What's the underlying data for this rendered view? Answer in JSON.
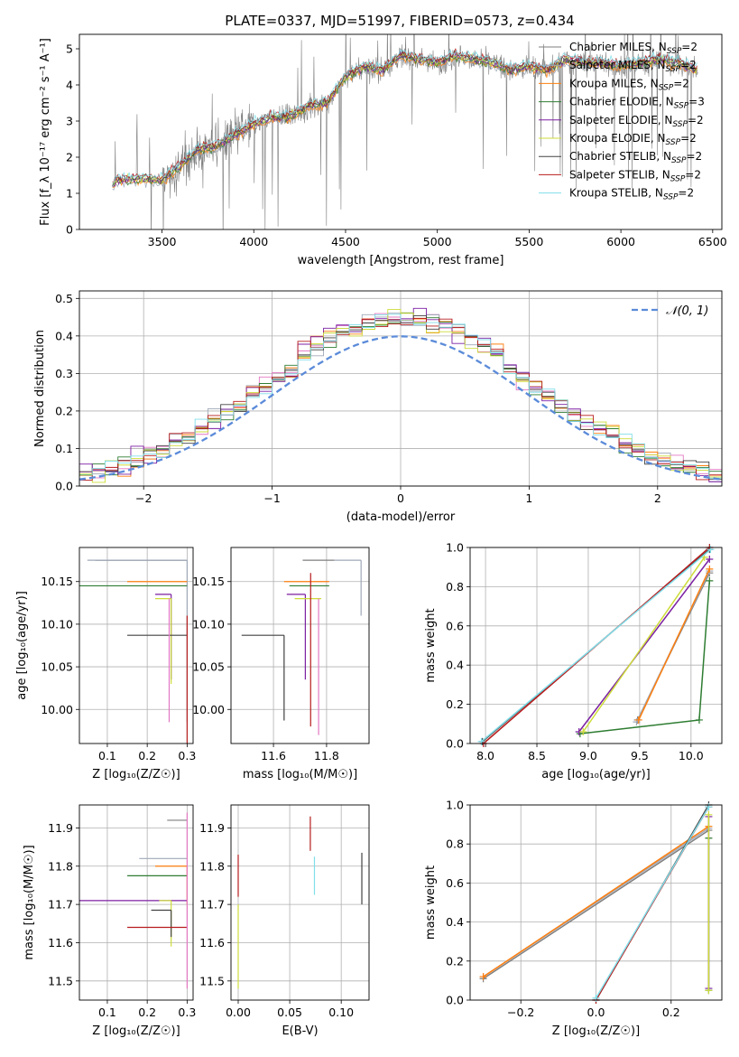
{
  "title": "PLATE=0337, MJD=51997, FIBERID=0573, z=0.434",
  "model_colors": [
    "#7f7f7f",
    "#9fa8b8",
    "#ff7f0e",
    "#2e7d32",
    "#7b1fa2",
    "#cddc39",
    "#424242",
    "#b71c1c",
    "#80deea"
  ],
  "chart_data": [
    {
      "id": "spectrum",
      "type": "line",
      "xlabel": "wavelength [Angstrom, rest frame]",
      "ylabel": "Flux [f_λ 10⁻¹⁷ erg cm⁻² s⁻¹ A⁻¹]",
      "xlim": [
        3050,
        6550
      ],
      "ylim": [
        0,
        5.4
      ],
      "xticks": [
        3500,
        4000,
        4500,
        5000,
        5500,
        6000,
        6500
      ],
      "yticks": [
        0,
        1,
        2,
        3,
        4,
        5
      ],
      "grid": false,
      "legend_position": "right",
      "legend": [
        {
          "base": "Chabrier MILES, N",
          "sub": "SSP",
          "tail": "=2"
        },
        {
          "base": "Salpeter MILES, N",
          "sub": "SSP",
          "tail": "=2"
        },
        {
          "base": "Kroupa MILES, N",
          "sub": "SSP",
          "tail": "=2"
        },
        {
          "base": "Chabrier ELODIE, N",
          "sub": "SSP",
          "tail": "=3"
        },
        {
          "base": "Salpeter ELODIE, N",
          "sub": "SSP",
          "tail": "=2"
        },
        {
          "base": "Kroupa ELODIE, N",
          "sub": "SSP",
          "tail": "=2"
        },
        {
          "base": "Chabrier STELIB, N",
          "sub": "SSP",
          "tail": "=2"
        },
        {
          "base": "Salpeter STELIB, N",
          "sub": "SSP",
          "tail": "=2"
        },
        {
          "base": "Kroupa STELIB, N",
          "sub": "SSP",
          "tail": "=2"
        }
      ],
      "continuum_nodes": {
        "x": [
          3230,
          3250,
          3400,
          3500,
          3600,
          3700,
          3800,
          3900,
          4000,
          4100,
          4200,
          4300,
          4400,
          4500,
          4600,
          4700,
          4800,
          4900,
          5000,
          5100,
          5200,
          5300,
          5400,
          5500,
          5600,
          5700,
          5800,
          5900,
          6000,
          6100,
          6200,
          6300,
          6420
        ],
        "y": [
          1.2,
          1.35,
          1.4,
          1.35,
          1.75,
          2.2,
          2.3,
          2.6,
          2.9,
          3.1,
          3.1,
          3.4,
          3.5,
          4.2,
          4.5,
          4.4,
          4.8,
          4.7,
          4.6,
          4.8,
          4.7,
          4.6,
          4.4,
          4.5,
          4.4,
          4.7,
          4.6,
          4.6,
          4.5,
          4.6,
          4.7,
          4.6,
          4.4
        ]
      }
    },
    {
      "id": "residuals",
      "type": "step",
      "xlabel": "(data-model)/error",
      "ylabel": "Normed distribution",
      "xlim": [
        -2.5,
        2.5
      ],
      "ylim": [
        0,
        0.52
      ],
      "xticks": [
        -2,
        -1,
        0,
        1,
        2
      ],
      "yticks": [
        0.0,
        0.1,
        0.2,
        0.3,
        0.4,
        0.5
      ],
      "grid": true,
      "legend_position": "top-right",
      "normal_label": "𝒩(0, 1)",
      "normal_color": "#5b8bd9",
      "bin_width": 0.1
    },
    {
      "id": "age_vs_Z",
      "type": "errorbar",
      "xlabel": "Z [log₁₀(Z/Z☉)]",
      "ylabel": "age  [log₁₀(age/yr)]",
      "xlim": [
        0.03,
        0.315
      ],
      "ylim": [
        9.96,
        10.19
      ],
      "xticks": [
        0.1,
        0.2,
        0.3
      ],
      "yticks": [
        10.0,
        10.05,
        10.1,
        10.15
      ],
      "grid": true,
      "points": [
        {
          "x": 0.3,
          "y": 10.175,
          "xlo": 0.23,
          "xhi": 0.0,
          "ylo": 0.0,
          "yhi": 0.0
        },
        {
          "x": 0.3,
          "y": 10.175,
          "xlo": 0.25,
          "xhi": 0.0,
          "ylo": 0.19,
          "yhi": 0.0
        },
        {
          "x": 0.3,
          "y": 10.15,
          "xlo": 0.15,
          "xhi": 0.0,
          "ylo": 0.0,
          "yhi": 0.0
        },
        {
          "x": 0.3,
          "y": 10.145,
          "xlo": 0.27,
          "xhi": 0.0,
          "ylo": 0.0,
          "yhi": 0.0
        },
        {
          "x": 0.26,
          "y": 10.135,
          "xlo": 0.04,
          "xhi": 0.0,
          "ylo": 0.1,
          "yhi": 0.0
        },
        {
          "x": 0.26,
          "y": 10.13,
          "xlo": 0.04,
          "xhi": 0.0,
          "ylo": 0.1,
          "yhi": 0.0
        },
        {
          "x": 0.3,
          "y": 10.087,
          "xlo": 0.15,
          "xhi": 0.0,
          "ylo": 0.0,
          "yhi": 0.0
        },
        {
          "x": 0.3,
          "y": 10.11,
          "xlo": 0.0,
          "xhi": 0.0,
          "ylo": 0.2,
          "yhi": 0.0
        },
        {
          "x": 0.255,
          "y": 10.13,
          "xlo": 0.0,
          "xhi": 0.0,
          "ylo": 0.145,
          "yhi": 0.0
        }
      ]
    },
    {
      "id": "age_vs_mass",
      "type": "errorbar",
      "xlabel": "mass [log₁₀(M/M☉)]",
      "ylabel": "",
      "xlim": [
        11.44,
        11.96
      ],
      "ylim": [
        9.96,
        10.19
      ],
      "xticks": [
        11.6,
        11.8
      ],
      "yticks": [
        10.0,
        10.05,
        10.1,
        10.15
      ],
      "grid": true,
      "points": [
        {
          "x": 11.83,
          "y": 10.175,
          "xlo": 0.12,
          "xhi": 0.0,
          "ylo": 0.0,
          "yhi": 0.0
        },
        {
          "x": 11.93,
          "y": 10.175,
          "xlo": 0.1,
          "xhi": 0.0,
          "ylo": 0.065,
          "yhi": 0.0
        },
        {
          "x": 11.81,
          "y": 10.15,
          "xlo": 0.17,
          "xhi": 0.0,
          "ylo": 0.0,
          "yhi": 0.0
        },
        {
          "x": 11.81,
          "y": 10.145,
          "xlo": 0.15,
          "xhi": 0.0,
          "ylo": 0.0,
          "yhi": 0.0
        },
        {
          "x": 11.72,
          "y": 10.135,
          "xlo": 0.07,
          "xhi": 0.0,
          "ylo": 0.1,
          "yhi": 0.0
        },
        {
          "x": 11.78,
          "y": 10.13,
          "xlo": 0.1,
          "xhi": 0.0,
          "ylo": 0.0,
          "yhi": 0.0
        },
        {
          "x": 11.64,
          "y": 10.087,
          "xlo": 0.16,
          "xhi": 0.0,
          "ylo": 0.1,
          "yhi": 0.0
        },
        {
          "x": 11.74,
          "y": 10.16,
          "xlo": 0.0,
          "xhi": 0.0,
          "ylo": 0.18,
          "yhi": 0.0
        },
        {
          "x": 11.77,
          "y": 10.13,
          "xlo": 0.0,
          "xhi": 0.0,
          "ylo": 0.16,
          "yhi": 0.0
        }
      ]
    },
    {
      "id": "mass_weight_vs_age",
      "type": "line",
      "xlabel": "age  [log₁₀(age/yr)]",
      "ylabel": "mass weight",
      "xlim": [
        7.85,
        10.3
      ],
      "ylim": [
        0,
        1.0
      ],
      "xticks": [
        8.0,
        8.5,
        9.0,
        9.5,
        10.0
      ],
      "yticks": [
        0.0,
        0.2,
        0.4,
        0.6,
        0.8,
        1.0
      ],
      "grid": true,
      "series": [
        {
          "x": [
            9.48,
            10.18
          ],
          "y": [
            0.12,
            0.87
          ]
        },
        {
          "x": [
            9.47,
            10.18
          ],
          "y": [
            0.11,
            0.88
          ]
        },
        {
          "x": [
            9.49,
            10.18
          ],
          "y": [
            0.12,
            0.89
          ]
        },
        {
          "x": [
            8.92,
            10.08,
            10.18
          ],
          "y": [
            0.05,
            0.12,
            0.83
          ]
        },
        {
          "x": [
            8.91,
            10.18
          ],
          "y": [
            0.06,
            0.94
          ]
        },
        {
          "x": [
            8.95,
            10.13
          ],
          "y": [
            0.06,
            0.95
          ]
        },
        {
          "x": [
            7.97,
            10.18
          ],
          "y": [
            0.01,
            0.99
          ]
        },
        {
          "x": [
            7.98,
            10.18
          ],
          "y": [
            0.0,
            1.0
          ]
        },
        {
          "x": [
            7.96,
            10.19
          ],
          "y": [
            0.01,
            0.99
          ]
        }
      ]
    },
    {
      "id": "mass_vs_Z",
      "type": "errorbar",
      "xlabel": "Z [log₁₀(Z/Z☉)]",
      "ylabel": "mass [log₁₀(M/M☉)]",
      "xlim": [
        0.03,
        0.315
      ],
      "ylim": [
        11.45,
        11.96
      ],
      "xticks": [
        0.1,
        0.2,
        0.3
      ],
      "yticks": [
        11.5,
        11.6,
        11.7,
        11.8,
        11.9
      ],
      "grid": true,
      "points": [
        {
          "x": 0.3,
          "y": 11.92,
          "xlo": 0.05,
          "xhi": 0.0,
          "ylo": 0.0,
          "yhi": 0.0
        },
        {
          "x": 0.3,
          "y": 11.82,
          "xlo": 0.12,
          "xhi": 0.0,
          "ylo": 0.0,
          "yhi": 0.0
        },
        {
          "x": 0.3,
          "y": 11.8,
          "xlo": 0.08,
          "xhi": 0.0,
          "ylo": 0.1,
          "yhi": 0.0
        },
        {
          "x": 0.3,
          "y": 11.775,
          "xlo": 0.15,
          "xhi": 0.0,
          "ylo": 0.0,
          "yhi": 0.0
        },
        {
          "x": 0.3,
          "y": 11.71,
          "xlo": 0.27,
          "xhi": 0.0,
          "ylo": 0.0,
          "yhi": 0.0
        },
        {
          "x": 0.26,
          "y": 11.71,
          "xlo": 0.03,
          "xhi": 0.0,
          "ylo": 0.12,
          "yhi": 0.0
        },
        {
          "x": 0.26,
          "y": 11.685,
          "xlo": 0.05,
          "xhi": 0.0,
          "ylo": 0.07,
          "yhi": 0.0
        },
        {
          "x": 0.3,
          "y": 11.64,
          "xlo": 0.15,
          "xhi": 0.0,
          "ylo": 0.0,
          "yhi": 0.0
        },
        {
          "x": 0.3,
          "y": 11.94,
          "xlo": 0.0,
          "xhi": 0.0,
          "ylo": 0.46,
          "yhi": 0.0
        }
      ]
    },
    {
      "id": "mass_vs_EBV",
      "type": "errorbar",
      "xlabel": "E(B-V)",
      "ylabel": "",
      "xlim": [
        -0.007,
        0.127
      ],
      "ylim": [
        11.45,
        11.96
      ],
      "xticks": [
        0.0,
        0.05,
        0.1
      ],
      "yticks": [
        11.5,
        11.6,
        11.7,
        11.8,
        11.9
      ],
      "grid": true,
      "points": [
        {
          "x": 0.0,
          "y": 11.77,
          "xlo": 0.0,
          "xhi": 0.0,
          "ylo": 0.05,
          "yhi": 0.06
        },
        {
          "x": 0.0,
          "y": 11.6,
          "xlo": 0.0,
          "xhi": 0.0,
          "ylo": 0.12,
          "yhi": 0.1
        },
        {
          "x": 0.07,
          "y": 11.885,
          "xlo": 0.0,
          "xhi": 0.0,
          "ylo": 0.045,
          "yhi": 0.045
        },
        {
          "x": 0.074,
          "y": 11.775,
          "xlo": 0.0,
          "xhi": 0.0,
          "ylo": 0.05,
          "yhi": 0.05
        },
        {
          "x": 0.12,
          "y": 11.77,
          "xlo": 0.0,
          "xhi": 0.0,
          "ylo": 0.07,
          "yhi": 0.065
        }
      ],
      "point_colors": [
        7,
        5,
        7,
        8,
        6
      ]
    },
    {
      "id": "mass_weight_vs_Z",
      "type": "line",
      "xlabel": "Z [log₁₀(Z/Z☉)]",
      "ylabel": "mass weight",
      "xlim": [
        -0.335,
        0.335
      ],
      "ylim": [
        0,
        1.0
      ],
      "xticks": [
        -0.2,
        0.0,
        0.2
      ],
      "yticks": [
        0.0,
        0.2,
        0.4,
        0.6,
        0.8,
        1.0
      ],
      "grid": true,
      "series": [
        {
          "x": [
            -0.3,
            0.3
          ],
          "y": [
            0.11,
            0.87
          ]
        },
        {
          "x": [
            -0.3,
            0.3
          ],
          "y": [
            0.12,
            0.88
          ]
        },
        {
          "x": [
            -0.3,
            0.3
          ],
          "y": [
            0.12,
            0.89
          ]
        },
        {
          "x": [
            0.3,
            0.3
          ],
          "y": [
            0.05,
            0.83
          ]
        },
        {
          "x": [
            0.3,
            0.3
          ],
          "y": [
            0.06,
            0.94
          ]
        },
        {
          "x": [
            0.3,
            0.3
          ],
          "y": [
            0.05,
            0.95
          ]
        },
        {
          "x": [
            0.0,
            0.3
          ],
          "y": [
            0.0,
            1.0
          ]
        },
        {
          "x": [
            0.0,
            0.3
          ],
          "y": [
            0.0,
            0.99
          ]
        },
        {
          "x": [
            0.0,
            0.3
          ],
          "y": [
            0.01,
            0.99
          ]
        }
      ]
    }
  ]
}
